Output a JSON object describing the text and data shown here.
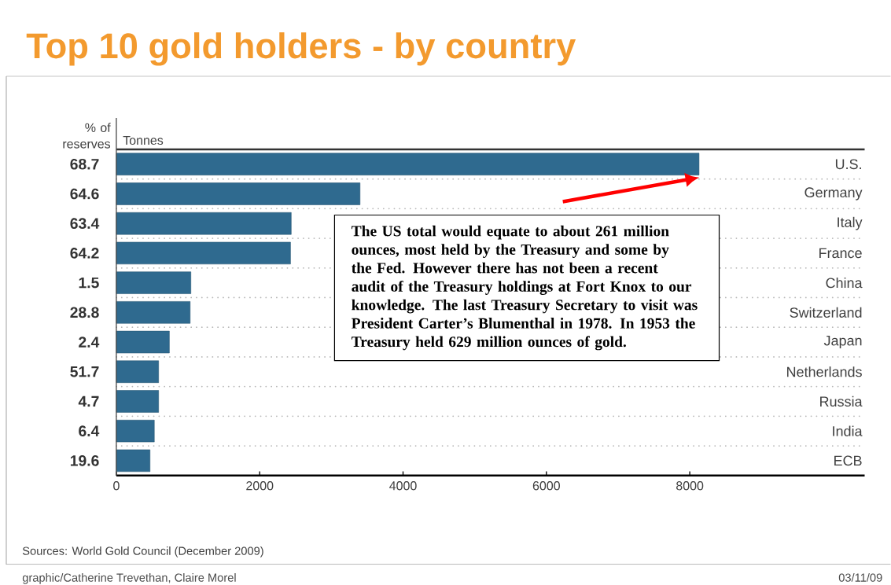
{
  "chart_data": {
    "type": "bar",
    "orientation": "horizontal",
    "title": "Top 10 gold holders - by country",
    "categories": [
      "U.S.",
      "Germany",
      "Italy",
      "France",
      "China",
      "Switzerland",
      "Japan",
      "Netherlands",
      "Russia",
      "India",
      "ECB"
    ],
    "values": [
      8130,
      3400,
      2440,
      2430,
      1040,
      1030,
      740,
      590,
      590,
      530,
      470
    ],
    "color": "#2f6a8f",
    "xlim": [
      0,
      10440
    ],
    "xticks": [
      0,
      2000,
      4000,
      6000,
      8000
    ],
    "grid": "y",
    "annotations": [
      "% of reserves",
      "Tonnes",
      "68.7",
      "64.6",
      "63.4",
      "64.2",
      "1.5",
      "28.8",
      "2.4",
      "51.7",
      "4.7",
      "6.4",
      "19.6",
      "The US total would equate to about 261 million ounces, most held by the Treasury and some by the Fed. However there has not been a recent audit of the Treasury holdings at Fort Knox to our knowledge. The last Treasury Secretary to visit was President Carter’s Blumenthal in 1978. In 1953 the Treasury held 629 million ounces of gold.",
      "Sources:  World Gold Council (December 2009)",
      "graphic/Catherine Trevethan, Claire Morel",
      "03/11/09"
    ]
  }
}
